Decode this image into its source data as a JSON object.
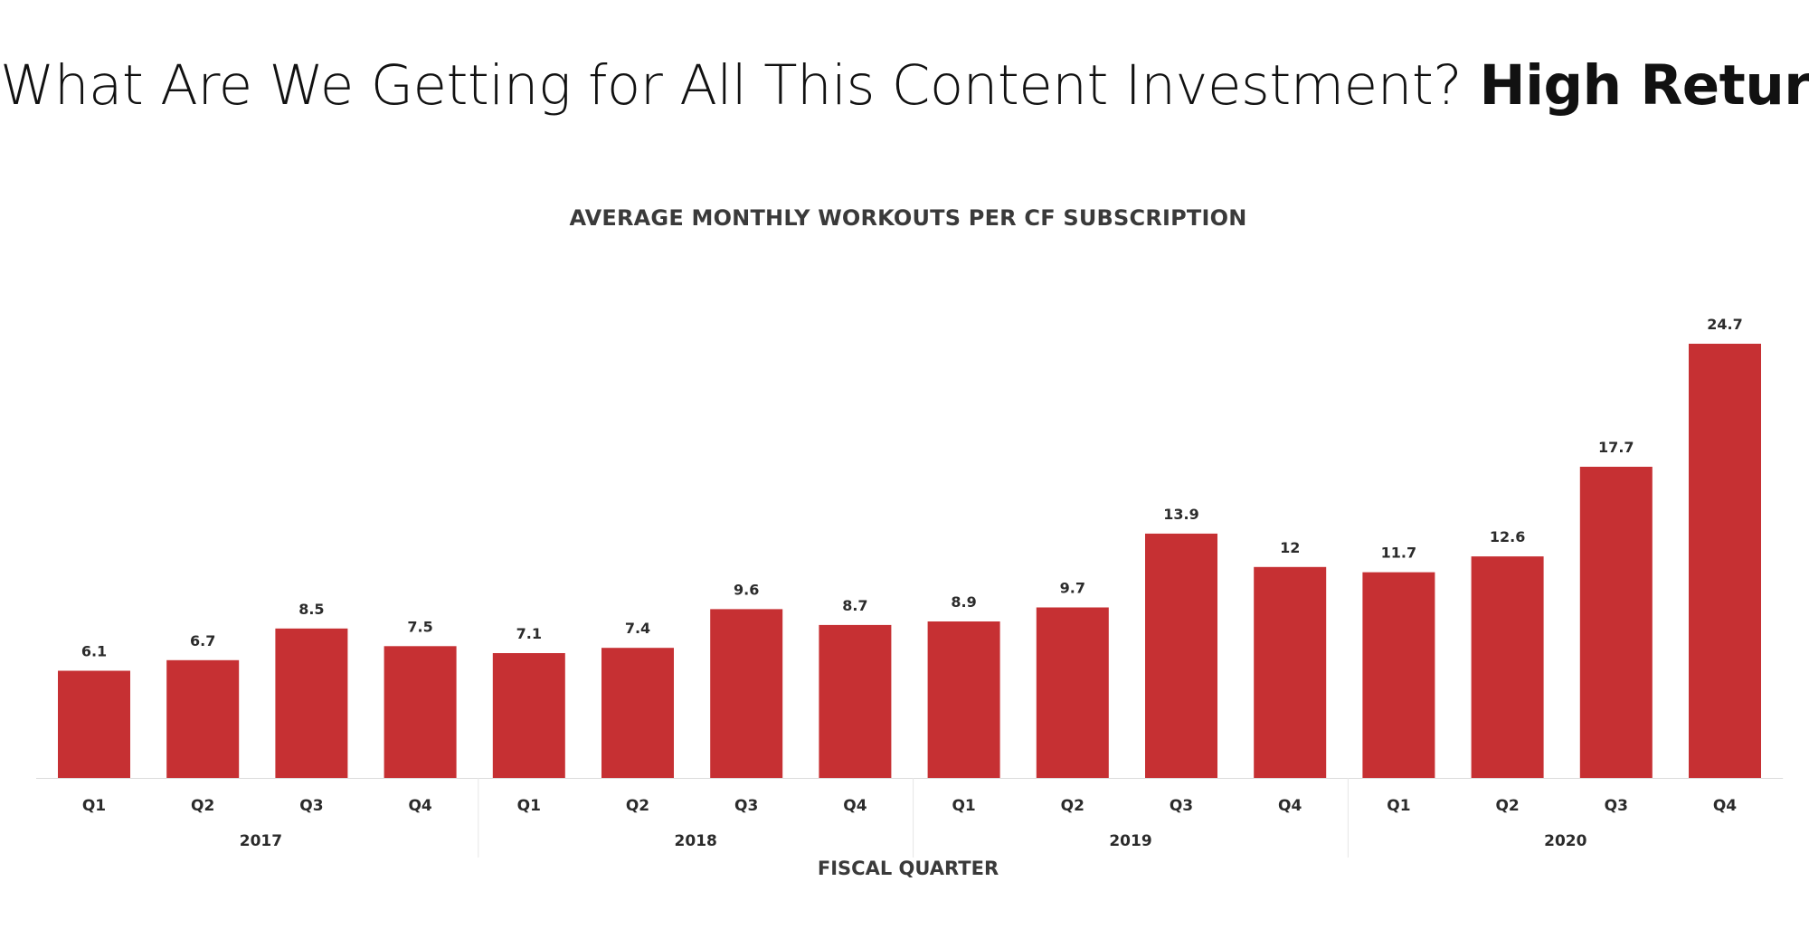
{
  "headline": {
    "regular": "What Are We Getting for All This Content Investment?",
    "bold": "High Return"
  },
  "chart_data": {
    "type": "bar",
    "title": "AVERAGE MONTHLY WORKOUTS PER CF SUBSCRIPTION",
    "xlabel": "FISCAL QUARTER",
    "ylabel": "",
    "ylim": [
      0,
      24.7
    ],
    "grid": false,
    "bar_color": "#c63033",
    "groups": [
      {
        "year": "2017",
        "quarters": [
          "Q1",
          "Q2",
          "Q3",
          "Q4"
        ],
        "values": [
          6.1,
          6.7,
          8.5,
          7.5
        ],
        "labels": [
          "6.1",
          "6.7",
          "8.5",
          "7.5"
        ]
      },
      {
        "year": "2018",
        "quarters": [
          "Q1",
          "Q2",
          "Q3",
          "Q4"
        ],
        "values": [
          7.1,
          7.4,
          9.6,
          8.7
        ],
        "labels": [
          "7.1",
          "7.4",
          "9.6",
          "8.7"
        ]
      },
      {
        "year": "2019",
        "quarters": [
          "Q1",
          "Q2",
          "Q3",
          "Q4"
        ],
        "values": [
          8.9,
          9.7,
          13.9,
          12
        ],
        "labels": [
          "8.9",
          "9.7",
          "13.9",
          "12"
        ]
      },
      {
        "year": "2020",
        "quarters": [
          "Q1",
          "Q2",
          "Q3",
          "Q4"
        ],
        "values": [
          11.7,
          12.6,
          17.7,
          24.7
        ],
        "labels": [
          "11.7",
          "12.6",
          "17.7",
          "24.7"
        ]
      }
    ]
  }
}
